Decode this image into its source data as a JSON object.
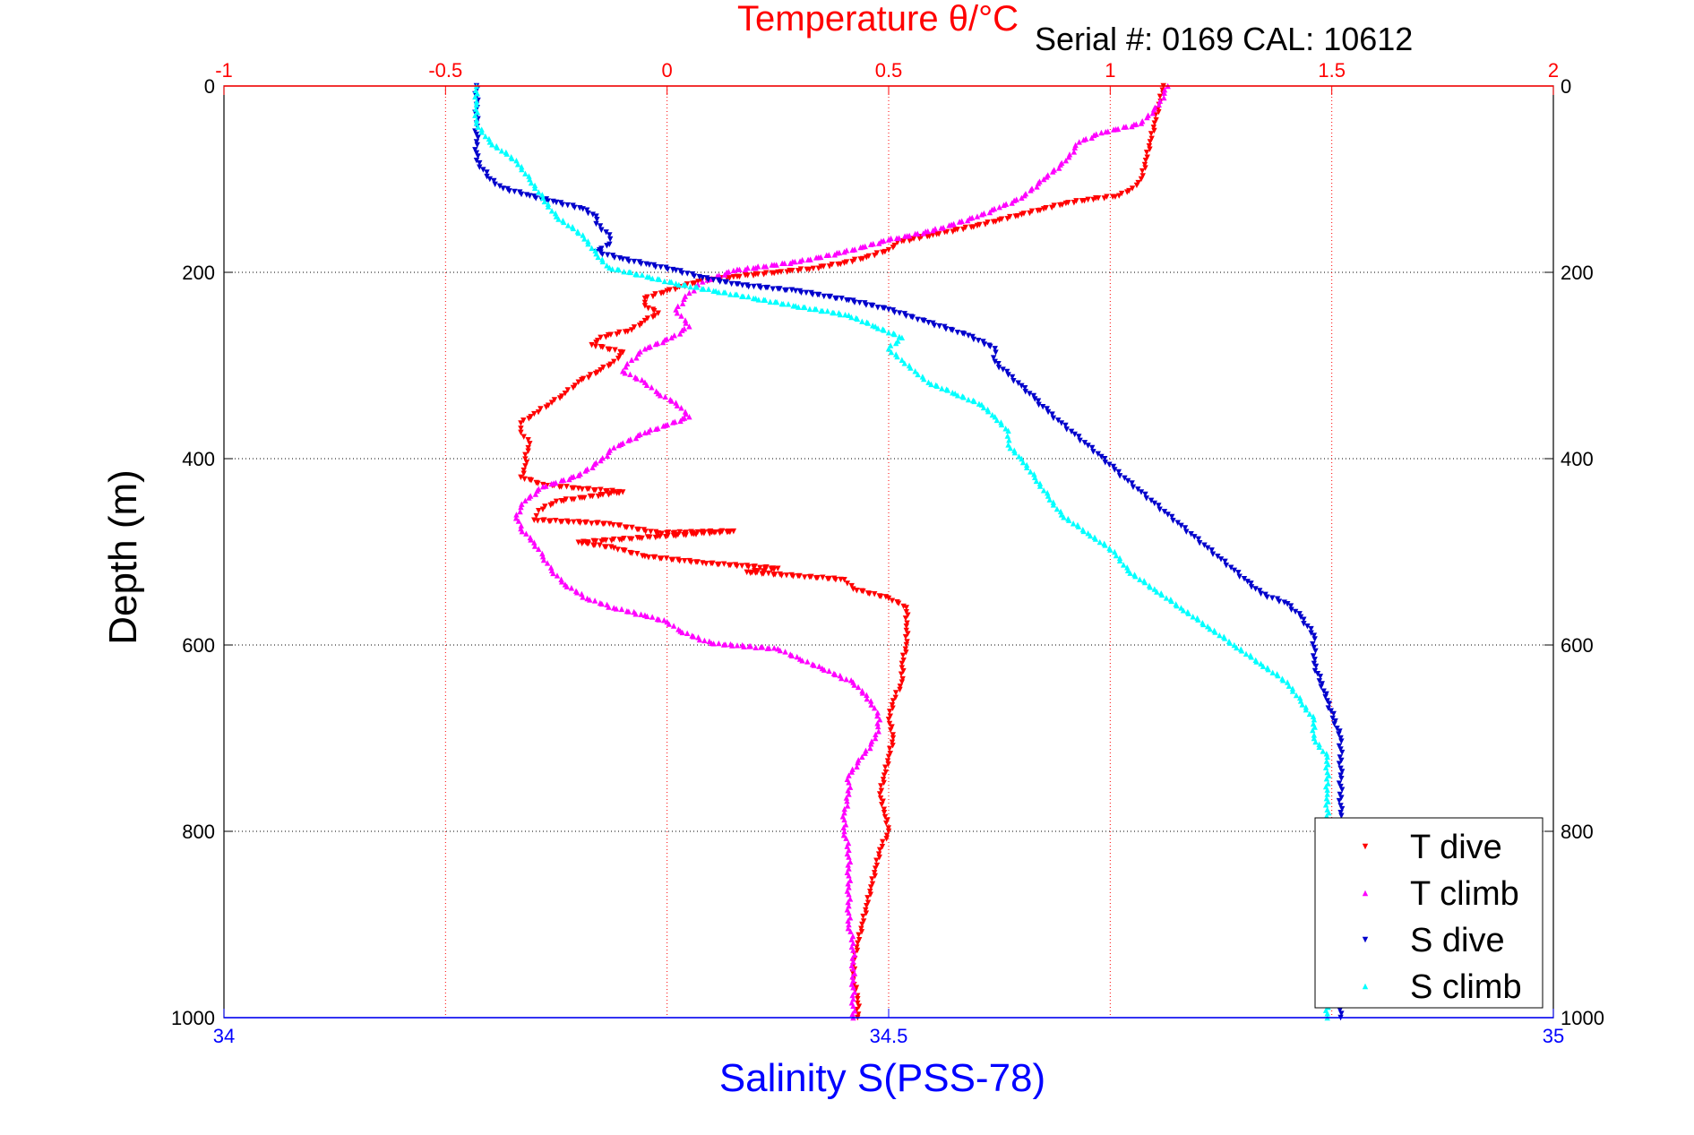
{
  "window": {
    "background": "#ffffff"
  },
  "chart_data": {
    "type": "scatter",
    "title": "Temperature θ/°C",
    "annotation": "Serial #: 0169 CAL: 10612",
    "xlabel": "Salinity S(PSS-78)",
    "x2label": "Temperature θ/°C",
    "ylabel": "Depth (m)",
    "grid": true,
    "legend_position": "bottom-right",
    "axes": {
      "depth": {
        "range": [
          0,
          1000
        ],
        "ticks": [
          0,
          200,
          400,
          600,
          800,
          1000
        ],
        "tick_labels": [
          "0",
          "200",
          "400",
          "600",
          "800",
          "1000"
        ],
        "reversed": true
      },
      "salinity": {
        "range": [
          34,
          35
        ],
        "ticks": [
          34,
          34.5,
          35
        ],
        "tick_labels": [
          "34",
          "34.5",
          "35"
        ],
        "color": "#0000ff"
      },
      "temperature": {
        "range": [
          -1,
          2
        ],
        "ticks": [
          -1,
          -0.5,
          0,
          0.5,
          1,
          1.5,
          2
        ],
        "tick_labels": [
          "-1",
          "-0.5",
          "0",
          "0.5",
          "1",
          "1.5",
          "2"
        ],
        "color": "#ff0000"
      }
    },
    "series": [
      {
        "name": "T dive",
        "axis": "temperature",
        "color": "#ff0000",
        "marker": "triangle-down",
        "points": [
          [
            1.12,
            0
          ],
          [
            1.11,
            20
          ],
          [
            1.1,
            40
          ],
          [
            1.09,
            60
          ],
          [
            1.08,
            80
          ],
          [
            1.07,
            100
          ],
          [
            1.05,
            110
          ],
          [
            1.02,
            118
          ],
          [
            0.95,
            122
          ],
          [
            0.9,
            126
          ],
          [
            0.85,
            132
          ],
          [
            0.8,
            138
          ],
          [
            0.75,
            144
          ],
          [
            0.7,
            150
          ],
          [
            0.6,
            160
          ],
          [
            0.52,
            168
          ],
          [
            0.5,
            176
          ],
          [
            0.45,
            184
          ],
          [
            0.4,
            190
          ],
          [
            0.33,
            196
          ],
          [
            0.25,
            200
          ],
          [
            0.15,
            205
          ],
          [
            0.07,
            210
          ],
          [
            0.0,
            220
          ],
          [
            -0.05,
            228
          ],
          [
            -0.05,
            236
          ],
          [
            -0.02,
            244
          ],
          [
            -0.05,
            252
          ],
          [
            -0.08,
            262
          ],
          [
            -0.15,
            270
          ],
          [
            -0.17,
            278
          ],
          [
            -0.1,
            286
          ],
          [
            -0.12,
            296
          ],
          [
            -0.15,
            305
          ],
          [
            -0.2,
            318
          ],
          [
            -0.23,
            330
          ],
          [
            -0.26,
            340
          ],
          [
            -0.3,
            352
          ],
          [
            -0.33,
            362
          ],
          [
            -0.33,
            372
          ],
          [
            -0.31,
            384
          ],
          [
            -0.32,
            396
          ],
          [
            -0.32,
            408
          ],
          [
            -0.33,
            420
          ],
          [
            -0.28,
            428
          ],
          [
            -0.2,
            432
          ],
          [
            -0.1,
            436
          ],
          [
            -0.25,
            446
          ],
          [
            -0.29,
            456
          ],
          [
            -0.3,
            466
          ],
          [
            -0.13,
            470
          ],
          [
            -0.02,
            480
          ],
          [
            0.15,
            478
          ],
          [
            -0.2,
            490
          ],
          [
            -0.12,
            496
          ],
          [
            -0.05,
            505
          ],
          [
            0.08,
            512
          ],
          [
            0.25,
            518
          ],
          [
            0.18,
            522
          ],
          [
            0.4,
            530
          ],
          [
            0.42,
            540
          ],
          [
            0.5,
            550
          ],
          [
            0.54,
            560
          ],
          [
            0.54,
            580
          ],
          [
            0.54,
            600
          ],
          [
            0.53,
            620
          ],
          [
            0.53,
            640
          ],
          [
            0.51,
            660
          ],
          [
            0.5,
            680
          ],
          [
            0.51,
            700
          ],
          [
            0.5,
            720
          ],
          [
            0.49,
            740
          ],
          [
            0.48,
            760
          ],
          [
            0.49,
            780
          ],
          [
            0.5,
            800
          ],
          [
            0.48,
            820
          ],
          [
            0.47,
            840
          ],
          [
            0.46,
            860
          ],
          [
            0.45,
            880
          ],
          [
            0.44,
            900
          ],
          [
            0.43,
            920
          ],
          [
            0.42,
            940
          ],
          [
            0.42,
            960
          ],
          [
            0.43,
            980
          ],
          [
            0.43,
            1000
          ]
        ]
      },
      {
        "name": "T climb",
        "axis": "temperature",
        "color": "#ff00ff",
        "marker": "triangle-up",
        "points": [
          [
            1.13,
            0
          ],
          [
            1.11,
            20
          ],
          [
            1.07,
            40
          ],
          [
            0.98,
            50
          ],
          [
            0.93,
            60
          ],
          [
            0.9,
            80
          ],
          [
            0.85,
            100
          ],
          [
            0.8,
            120
          ],
          [
            0.75,
            130
          ],
          [
            0.7,
            140
          ],
          [
            0.6,
            155
          ],
          [
            0.5,
            165
          ],
          [
            0.4,
            178
          ],
          [
            0.3,
            188
          ],
          [
            0.15,
            198
          ],
          [
            0.08,
            210
          ],
          [
            0.05,
            222
          ],
          [
            0.02,
            240
          ],
          [
            0.05,
            258
          ],
          [
            0.01,
            270
          ],
          [
            -0.05,
            282
          ],
          [
            -0.08,
            294
          ],
          [
            -0.1,
            306
          ],
          [
            -0.05,
            318
          ],
          [
            -0.02,
            330
          ],
          [
            0.02,
            340
          ],
          [
            0.05,
            355
          ],
          [
            -0.05,
            372
          ],
          [
            -0.12,
            388
          ],
          [
            -0.15,
            402
          ],
          [
            -0.2,
            418
          ],
          [
            -0.28,
            430
          ],
          [
            -0.32,
            445
          ],
          [
            -0.34,
            460
          ],
          [
            -0.33,
            475
          ],
          [
            -0.3,
            490
          ],
          [
            -0.28,
            505
          ],
          [
            -0.26,
            520
          ],
          [
            -0.23,
            535
          ],
          [
            -0.18,
            550
          ],
          [
            -0.12,
            560
          ],
          [
            -0.05,
            568
          ],
          [
            0.0,
            575
          ],
          [
            0.03,
            585
          ],
          [
            0.1,
            598
          ],
          [
            0.25,
            604
          ],
          [
            0.3,
            615
          ],
          [
            0.35,
            625
          ],
          [
            0.42,
            640
          ],
          [
            0.46,
            660
          ],
          [
            0.48,
            680
          ],
          [
            0.47,
            700
          ],
          [
            0.44,
            720
          ],
          [
            0.41,
            740
          ],
          [
            0.41,
            760
          ],
          [
            0.4,
            780
          ],
          [
            0.4,
            800
          ],
          [
            0.41,
            820
          ],
          [
            0.41,
            840
          ],
          [
            0.41,
            860
          ],
          [
            0.41,
            880
          ],
          [
            0.41,
            900
          ],
          [
            0.42,
            920
          ],
          [
            0.42,
            940
          ],
          [
            0.42,
            960
          ],
          [
            0.42,
            980
          ],
          [
            0.42,
            1000
          ]
        ]
      },
      {
        "name": "S dive",
        "axis": "salinity",
        "color": "#0000cc",
        "marker": "triangle-down",
        "points": [
          [
            34.19,
            0
          ],
          [
            34.19,
            20
          ],
          [
            34.19,
            40
          ],
          [
            34.19,
            60
          ],
          [
            34.19,
            80
          ],
          [
            34.2,
            100
          ],
          [
            34.21,
            110
          ],
          [
            34.23,
            118
          ],
          [
            34.25,
            125
          ],
          [
            34.27,
            132
          ],
          [
            34.28,
            140
          ],
          [
            34.28,
            148
          ],
          [
            34.29,
            160
          ],
          [
            34.29,
            170
          ],
          [
            34.28,
            178
          ],
          [
            34.3,
            186
          ],
          [
            34.32,
            192
          ],
          [
            34.34,
            198
          ],
          [
            34.36,
            206
          ],
          [
            34.39,
            214
          ],
          [
            34.43,
            220
          ],
          [
            34.47,
            230
          ],
          [
            34.5,
            240
          ],
          [
            34.53,
            254
          ],
          [
            34.56,
            268
          ],
          [
            34.58,
            282
          ],
          [
            34.58,
            296
          ],
          [
            34.59,
            310
          ],
          [
            34.6,
            322
          ],
          [
            34.61,
            336
          ],
          [
            34.62,
            350
          ],
          [
            34.63,
            362
          ],
          [
            34.64,
            374
          ],
          [
            34.65,
            386
          ],
          [
            34.66,
            398
          ],
          [
            34.67,
            412
          ],
          [
            34.68,
            424
          ],
          [
            34.69,
            436
          ],
          [
            34.7,
            448
          ],
          [
            34.71,
            460
          ],
          [
            34.72,
            472
          ],
          [
            34.73,
            484
          ],
          [
            34.74,
            496
          ],
          [
            34.75,
            508
          ],
          [
            34.76,
            520
          ],
          [
            34.77,
            532
          ],
          [
            34.78,
            545
          ],
          [
            34.8,
            556
          ],
          [
            34.81,
            570
          ],
          [
            34.82,
            590
          ],
          [
            34.82,
            620
          ],
          [
            34.83,
            660
          ],
          [
            34.84,
            700
          ],
          [
            34.84,
            740
          ],
          [
            34.84,
            780
          ],
          [
            34.84,
            820
          ],
          [
            34.84,
            860
          ],
          [
            34.84,
            900
          ],
          [
            34.84,
            940
          ],
          [
            34.84,
            970
          ],
          [
            34.84,
            1000
          ]
        ]
      },
      {
        "name": "S climb",
        "axis": "salinity",
        "color": "#00ffff",
        "marker": "triangle-up",
        "points": [
          [
            34.19,
            0
          ],
          [
            34.19,
            20
          ],
          [
            34.19,
            40
          ],
          [
            34.2,
            60
          ],
          [
            34.22,
            80
          ],
          [
            34.23,
            100
          ],
          [
            34.24,
            120
          ],
          [
            34.25,
            140
          ],
          [
            34.27,
            160
          ],
          [
            34.28,
            180
          ],
          [
            34.29,
            195
          ],
          [
            34.32,
            205
          ],
          [
            34.34,
            212
          ],
          [
            34.37,
            220
          ],
          [
            34.4,
            228
          ],
          [
            34.43,
            236
          ],
          [
            34.47,
            246
          ],
          [
            34.49,
            258
          ],
          [
            34.51,
            270
          ],
          [
            34.5,
            282
          ],
          [
            34.51,
            294
          ],
          [
            34.52,
            306
          ],
          [
            34.53,
            318
          ],
          [
            34.55,
            330
          ],
          [
            34.57,
            342
          ],
          [
            34.58,
            355
          ],
          [
            34.59,
            370
          ],
          [
            34.59,
            385
          ],
          [
            34.6,
            400
          ],
          [
            34.61,
            420
          ],
          [
            34.62,
            440
          ],
          [
            34.63,
            460
          ],
          [
            34.65,
            480
          ],
          [
            34.67,
            500
          ],
          [
            34.68,
            520
          ],
          [
            34.7,
            540
          ],
          [
            34.72,
            560
          ],
          [
            34.74,
            580
          ],
          [
            34.76,
            600
          ],
          [
            34.78,
            620
          ],
          [
            34.8,
            640
          ],
          [
            34.81,
            660
          ],
          [
            34.82,
            680
          ],
          [
            34.82,
            700
          ],
          [
            34.83,
            720
          ],
          [
            34.83,
            760
          ],
          [
            34.83,
            800
          ],
          [
            34.83,
            840
          ],
          [
            34.83,
            880
          ],
          [
            34.83,
            920
          ],
          [
            34.83,
            960
          ],
          [
            34.83,
            1000
          ]
        ]
      }
    ]
  }
}
